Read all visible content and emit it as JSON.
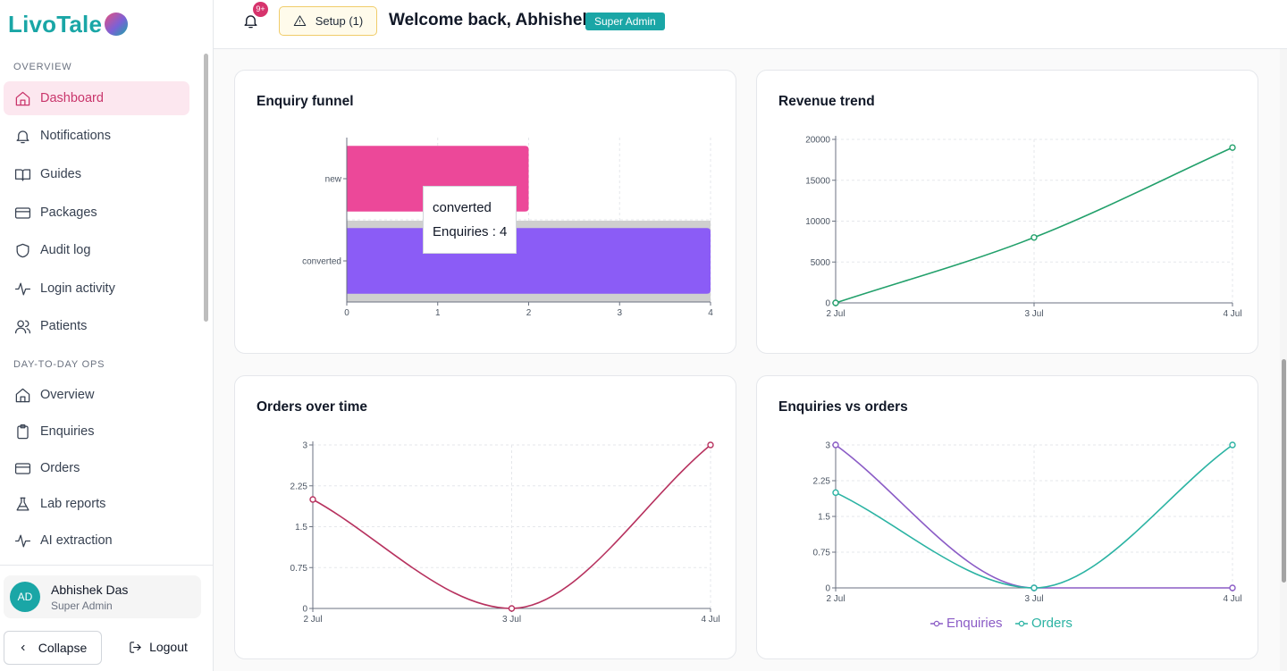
{
  "app": {
    "brand": "LivoTale",
    "accent": "#1aa6a6",
    "pink": "#c9356b"
  },
  "header": {
    "notif_badge": "9+",
    "setup_label": "Setup (1)",
    "welcome": "Welcome back, Abhishek",
    "role_badge": "Super Admin"
  },
  "sidebar": {
    "sections": [
      {
        "label": "OVERVIEW"
      },
      {
        "label": "DAY-TO-DAY OPS"
      }
    ],
    "items": [
      {
        "label": "Dashboard",
        "icon": "home-icon",
        "active": true
      },
      {
        "label": "Notifications",
        "icon": "bell-icon"
      },
      {
        "label": "Guides",
        "icon": "book-icon"
      },
      {
        "label": "Packages",
        "icon": "card-icon"
      },
      {
        "label": "Audit log",
        "icon": "shield-icon"
      },
      {
        "label": "Login activity",
        "icon": "activity-icon"
      },
      {
        "label": "Patients",
        "icon": "users-icon"
      },
      {
        "label": "Overview",
        "icon": "home-icon"
      },
      {
        "label": "Enquiries",
        "icon": "clipboard-icon"
      },
      {
        "label": "Orders",
        "icon": "card-icon"
      },
      {
        "label": "Lab reports",
        "icon": "flask-icon"
      },
      {
        "label": "AI extraction",
        "icon": "activity-icon"
      }
    ],
    "user": {
      "initials": "AD",
      "name": "Abhishek Das",
      "role": "Super Admin"
    },
    "collapse_label": "Collapse",
    "logout_label": "Logout"
  },
  "cards": {
    "funnel": {
      "title": "Enquiry funnel",
      "tooltip_title": "converted",
      "tooltip_value": "Enquiries : 4"
    },
    "revenue": {
      "title": "Revenue trend"
    },
    "orders": {
      "title": "Orders over time"
    },
    "enq_vs_orders": {
      "title": "Enquiries vs orders",
      "legend": [
        "Enquiries",
        "Orders"
      ]
    }
  },
  "chart_data": [
    {
      "type": "bar",
      "title": "Enquiry funnel",
      "orientation": "horizontal",
      "categories": [
        "new",
        "converted"
      ],
      "values": [
        2,
        4
      ],
      "colors": [
        "#ec4899",
        "#8b5cf6"
      ],
      "xlim": [
        0,
        4
      ],
      "xticks": [
        "0",
        "1",
        "2",
        "3",
        "4"
      ],
      "grid": true
    },
    {
      "type": "line",
      "title": "Revenue trend",
      "x": [
        "2 Jul",
        "3 Jul",
        "4 Jul"
      ],
      "values": [
        0,
        8000,
        19000
      ],
      "color": "#22a06b",
      "ylim": [
        0,
        20000
      ],
      "yticks": [
        "0",
        "5000",
        "10000",
        "15000",
        "20000"
      ],
      "grid": true
    },
    {
      "type": "line",
      "title": "Orders over time",
      "x": [
        "2 Jul",
        "3 Jul",
        "4 Jul"
      ],
      "values": [
        2,
        0,
        3
      ],
      "color": "#b7325f",
      "ylim": [
        0,
        3
      ],
      "yticks": [
        "0",
        "0.75",
        "1.5",
        "2.25",
        "3"
      ],
      "grid": true
    },
    {
      "type": "line",
      "title": "Enquiries vs orders",
      "x": [
        "2 Jul",
        "3 Jul",
        "4 Jul"
      ],
      "series": [
        {
          "name": "Enquiries",
          "values": [
            3,
            0,
            0
          ],
          "color": "#8b5cc6"
        },
        {
          "name": "Orders",
          "values": [
            2,
            0,
            3
          ],
          "color": "#2bb3a3"
        }
      ],
      "ylim": [
        0,
        3
      ],
      "yticks": [
        "0",
        "0.75",
        "1.5",
        "2.25",
        "3"
      ],
      "legend_position": "bottom",
      "grid": true
    }
  ]
}
